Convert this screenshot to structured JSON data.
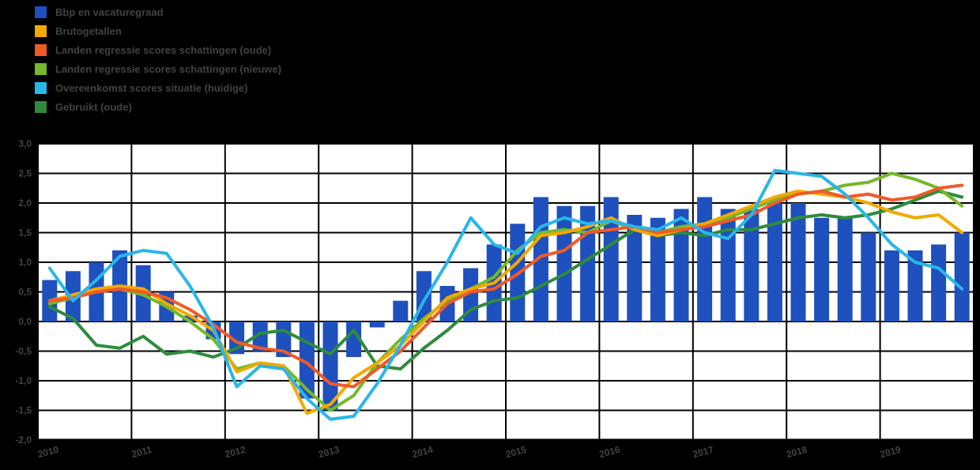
{
  "page": {
    "background": "#000000",
    "plot_background": "#ffffff",
    "grid_color": "#000000",
    "text_color": "#424242"
  },
  "legend": {
    "items": [
      {
        "label": "Bbp en vacaturegraad",
        "color": "#1E50BE",
        "marker": "square"
      },
      {
        "label": "Brutogetallen",
        "color": "#F2A900",
        "marker": "square"
      },
      {
        "label": "Landen regressie scores schattingen (oude)",
        "color": "#F05A28",
        "marker": "square"
      },
      {
        "label": "Landen regressie scores schattingen (nieuwe)",
        "color": "#76B82A",
        "marker": "square"
      },
      {
        "label": "Overeenkomst scores situatie (huidige)",
        "color": "#29B6E8",
        "marker": "square"
      },
      {
        "label": "Gebruikt (oude)",
        "color": "#2E8B3D",
        "marker": "square"
      }
    ]
  },
  "chart_data": {
    "type": "combo",
    "title": "",
    "xlabel": "",
    "ylabel": "",
    "ylim": [
      -2.0,
      3.0
    ],
    "grid": true,
    "legend_position": "top-left",
    "y_ticks": [
      "3,0",
      "2,5",
      "2,0",
      "1,5",
      "1,0",
      "0,5",
      "0,0",
      "-0,5",
      "-1,0",
      "-1,5",
      "-2,0"
    ],
    "x_labels": [
      "2010",
      "2011",
      "2012",
      "2013",
      "2014",
      "2015",
      "2016",
      "2017",
      "2018",
      "2019"
    ],
    "categories": [
      "2010K1",
      "2010K2",
      "2010K3",
      "2010K4",
      "2011K1",
      "2011K2",
      "2011K3",
      "2011K4",
      "2012K1",
      "2012K2",
      "2012K3",
      "2012K4",
      "2013K1",
      "2013K2",
      "2013K3",
      "2013K4",
      "2014K1",
      "2014K2",
      "2014K3",
      "2014K4",
      "2015K1",
      "2015K2",
      "2015K3",
      "2015K4",
      "2016K1",
      "2016K2",
      "2016K3",
      "2016K4",
      "2017K1",
      "2017K2",
      "2017K3",
      "2017K4",
      "2018K1",
      "2018K2",
      "2018K3",
      "2018K4",
      "2019K1",
      "2019K2",
      "2019K3",
      "2019K4"
    ],
    "bar_series": {
      "name": "Bbp en vacaturegraad",
      "color": "#1E50BE",
      "values": [
        0.7,
        0.85,
        1.0,
        1.2,
        0.95,
        0.5,
        0.1,
        -0.3,
        -0.55,
        -0.5,
        -0.6,
        -1.3,
        -1.5,
        -0.6,
        -0.1,
        0.35,
        0.85,
        0.6,
        0.9,
        1.3,
        1.65,
        2.1,
        1.95,
        1.95,
        2.1,
        1.8,
        1.75,
        1.9,
        2.1,
        1.9,
        1.9,
        2.0,
        2.0,
        1.75,
        1.75,
        1.5,
        1.2,
        1.2,
        1.3,
        1.5
      ]
    },
    "line_series": [
      {
        "name": "Gebruikt (oude)",
        "color": "#2E8B3D",
        "values": [
          0.25,
          0.05,
          -0.4,
          -0.45,
          -0.25,
          -0.55,
          -0.5,
          -0.6,
          -0.45,
          -0.2,
          -0.15,
          -0.35,
          -0.55,
          -0.15,
          -0.75,
          -0.8,
          -0.45,
          -0.15,
          0.2,
          0.35,
          0.4,
          0.6,
          0.8,
          1.05,
          1.3,
          1.55,
          1.45,
          1.5,
          1.45,
          1.55,
          1.55,
          1.65,
          1.75,
          1.8,
          1.75,
          1.8,
          1.9,
          2.05,
          2.2,
          2.1
        ]
      },
      {
        "name": "Landen regressie scores schattingen (nieuwe)",
        "color": "#76B82A",
        "values": [
          0.3,
          0.4,
          0.5,
          0.55,
          0.45,
          0.25,
          0.0,
          -0.3,
          -0.8,
          -0.7,
          -0.75,
          -1.15,
          -1.5,
          -1.25,
          -0.7,
          -0.3,
          0.05,
          0.35,
          0.55,
          0.75,
          1.2,
          1.5,
          1.55,
          1.5,
          1.7,
          1.55,
          1.5,
          1.6,
          1.65,
          1.75,
          1.9,
          2.05,
          2.15,
          2.2,
          2.3,
          2.35,
          2.5,
          2.4,
          2.25,
          1.95
        ]
      },
      {
        "name": "Brutogetallen",
        "color": "#F2A900",
        "values": [
          0.35,
          0.45,
          0.55,
          0.6,
          0.55,
          0.3,
          0.1,
          -0.15,
          -0.85,
          -0.7,
          -0.75,
          -1.55,
          -1.4,
          -0.95,
          -0.7,
          -0.4,
          0.0,
          0.4,
          0.55,
          0.65,
          1.0,
          1.45,
          1.5,
          1.6,
          1.75,
          1.55,
          1.45,
          1.55,
          1.65,
          1.8,
          1.95,
          2.1,
          2.2,
          2.15,
          2.1,
          2.0,
          1.85,
          1.75,
          1.8,
          1.5
        ]
      },
      {
        "name": "Landen regressie scores schattingen (oude)",
        "color": "#F05A28",
        "values": [
          0.35,
          0.4,
          0.5,
          0.55,
          0.5,
          0.4,
          0.2,
          -0.05,
          -0.35,
          -0.45,
          -0.5,
          -0.7,
          -1.05,
          -1.1,
          -0.8,
          -0.5,
          -0.1,
          0.3,
          0.5,
          0.55,
          0.8,
          1.1,
          1.2,
          1.5,
          1.55,
          1.6,
          1.5,
          1.55,
          1.6,
          1.7,
          1.8,
          2.0,
          2.15,
          2.2,
          2.1,
          2.15,
          2.05,
          2.1,
          2.25,
          2.3
        ]
      },
      {
        "name": "Overeenkomst scores situatie (huidige)",
        "color": "#29B6E8",
        "values": [
          0.9,
          0.35,
          0.7,
          1.1,
          1.2,
          1.15,
          0.6,
          -0.1,
          -1.1,
          -0.75,
          -0.8,
          -1.3,
          -1.65,
          -1.6,
          -1.05,
          -0.4,
          0.35,
          1.0,
          1.75,
          1.3,
          1.15,
          1.6,
          1.75,
          1.65,
          1.7,
          1.6,
          1.55,
          1.75,
          1.5,
          1.4,
          1.8,
          2.55,
          2.5,
          2.45,
          2.15,
          1.75,
          1.3,
          1.0,
          0.9,
          0.55
        ]
      }
    ]
  }
}
